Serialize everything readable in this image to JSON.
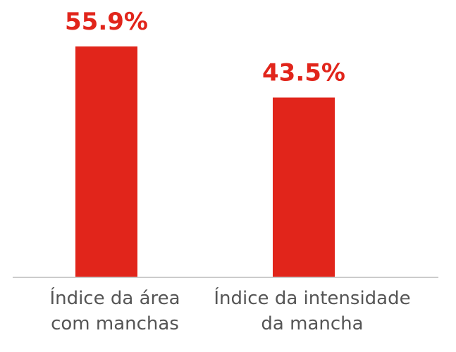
{
  "chart_data": {
    "type": "bar",
    "categories": [
      [
        "Índice da área",
        "com manchas"
      ],
      [
        "Índice da intensidade",
        "da mancha"
      ]
    ],
    "values": [
      55.9,
      43.5
    ],
    "value_labels": [
      "55.9%",
      "43.5%"
    ],
    "ylim": [
      0,
      60
    ],
    "bar_color": "#e1251b",
    "label_color": "#e1251b",
    "axis_color": "#cccccc",
    "grid": false
  }
}
